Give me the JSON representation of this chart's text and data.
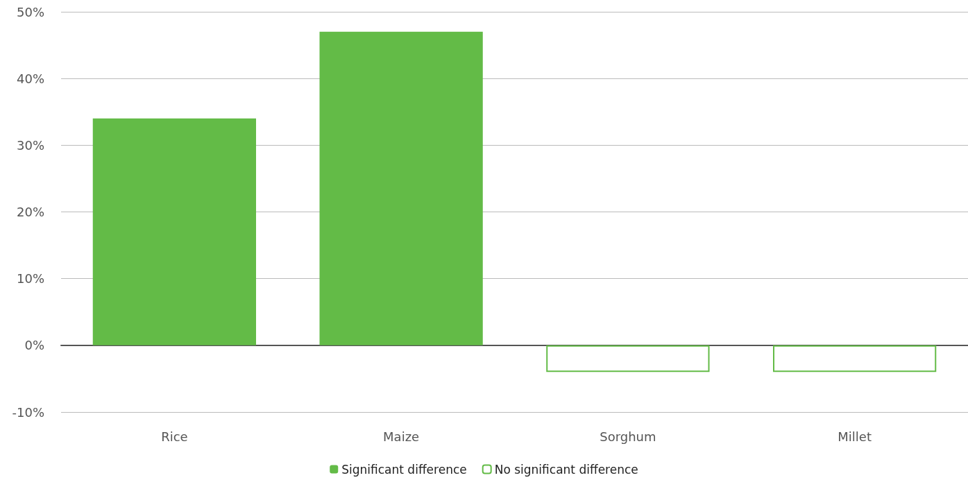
{
  "chart_data": {
    "type": "bar",
    "categories": [
      "Rice",
      "Maize",
      "Sorghum",
      "Millet"
    ],
    "series": [
      {
        "name": "Significant difference",
        "color": "#63bb47",
        "values": [
          34,
          47,
          null,
          null
        ]
      },
      {
        "name": "No significant difference",
        "color": "#63bb47",
        "values": [
          null,
          null,
          -4,
          -4
        ]
      }
    ],
    "ylim": [
      -10,
      50
    ],
    "yticks": [
      {
        "value": -10,
        "label": "-10%"
      },
      {
        "value": 0,
        "label": "0%"
      },
      {
        "value": 10,
        "label": "10%"
      },
      {
        "value": 20,
        "label": "20%"
      },
      {
        "value": 30,
        "label": "30%"
      },
      {
        "value": 40,
        "label": "40%"
      },
      {
        "value": 50,
        "label": "50%"
      }
    ],
    "grid": "y",
    "legend": "bottom"
  }
}
